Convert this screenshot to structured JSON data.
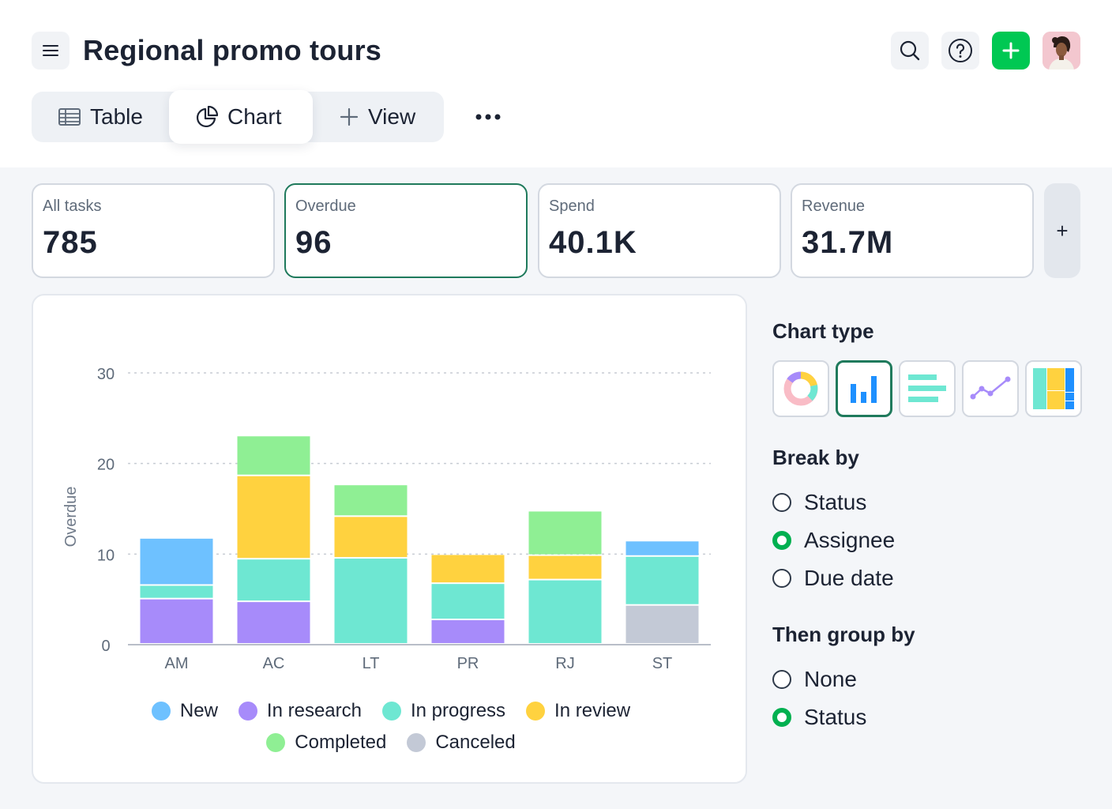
{
  "header": {
    "title": "Regional promo tours",
    "icons": {
      "menu": "menu-icon",
      "search": "search-icon",
      "help": "help-icon",
      "add": "plus-icon"
    },
    "avatar": "user-avatar",
    "accent_color": "#00c853"
  },
  "views": {
    "tabs": [
      {
        "label": "Table",
        "icon": "table-icon",
        "active": false
      },
      {
        "label": "Chart",
        "icon": "pie-chart-icon",
        "active": true
      },
      {
        "label": "View",
        "icon": "plus-icon",
        "active": false
      }
    ],
    "more_icon": "more-horizontal-icon"
  },
  "stats": [
    {
      "label": "All tasks",
      "value": "785",
      "selected": false
    },
    {
      "label": "Overdue",
      "value": "96",
      "selected": true
    },
    {
      "label": "Spend",
      "value": "40.1K",
      "selected": false
    },
    {
      "label": "Revenue",
      "value": "31.7M",
      "selected": false
    }
  ],
  "add_stat_label": "+",
  "chart_data": {
    "type": "bar",
    "stacked": true,
    "title": "",
    "xlabel": "",
    "ylabel": "Overdue",
    "ylim": [
      0,
      30
    ],
    "yticks": [
      0,
      10,
      20,
      30
    ],
    "grid": true,
    "legend_position": "bottom",
    "categories": [
      "AM",
      "AC",
      "LT",
      "PR",
      "RJ",
      "ST"
    ],
    "series": [
      {
        "name": "Canceled",
        "color": "#c3c9d6",
        "values": [
          0,
          0,
          0,
          0,
          0,
          4.3
        ]
      },
      {
        "name": "In research",
        "color": "#a78bfa",
        "values": [
          5,
          4.7,
          0,
          2.7,
          0,
          0
        ]
      },
      {
        "name": "In progress",
        "color": "#6ee7d2",
        "values": [
          1.5,
          4.7,
          9.5,
          4,
          7.1,
          5.4
        ]
      },
      {
        "name": "In review",
        "color": "#ffd23f",
        "values": [
          0,
          9.2,
          4.6,
          3.2,
          2.7,
          0
        ]
      },
      {
        "name": "Completed",
        "color": "#8fef94",
        "values": [
          0,
          4.4,
          3.5,
          0,
          4.9,
          0
        ]
      },
      {
        "name": "New",
        "color": "#6ec1ff",
        "values": [
          5.2,
          0,
          0,
          0,
          0,
          1.7
        ]
      }
    ],
    "legend_order": [
      "New",
      "In research",
      "In progress",
      "In review",
      "Completed",
      "Canceled"
    ]
  },
  "panel": {
    "chart_type_heading": "Chart type",
    "chart_types": [
      {
        "icon": "donut-chart-icon",
        "selected": false
      },
      {
        "icon": "bar-chart-icon",
        "selected": true
      },
      {
        "icon": "horizontal-bar-chart-icon",
        "selected": false
      },
      {
        "icon": "line-chart-icon",
        "selected": false
      },
      {
        "icon": "treemap-chart-icon",
        "selected": false
      }
    ],
    "break_by_heading": "Break by",
    "break_by_options": [
      {
        "label": "Status",
        "checked": false
      },
      {
        "label": "Assignee",
        "checked": true
      },
      {
        "label": "Due date",
        "checked": false
      }
    ],
    "group_by_heading": "Then group by",
    "group_by_options": [
      {
        "label": "None",
        "checked": false
      },
      {
        "label": "Status",
        "checked": true
      }
    ]
  }
}
